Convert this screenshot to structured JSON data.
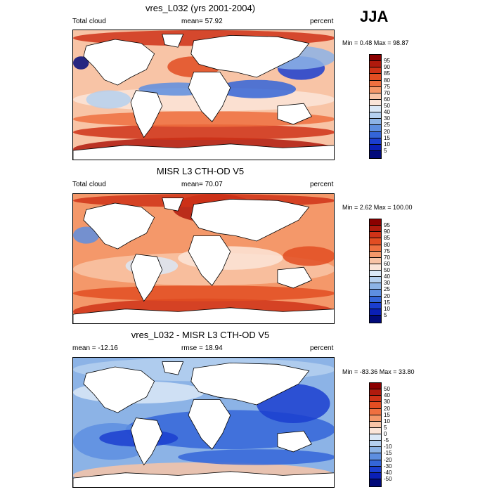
{
  "season_label": "JJA",
  "panels": [
    {
      "title": "vres_L032 (yrs 2001-2004)",
      "left_label": "Total cloud",
      "center_label": "mean=  57.92",
      "right_label": "percent",
      "minmax": "Min =   0.48 Max =  98.87",
      "colorbar_labels": [
        "95",
        "90",
        "85",
        "80",
        "75",
        "70",
        "60",
        "50",
        "40",
        "30",
        "25",
        "20",
        "15",
        "10",
        "5"
      ],
      "colorbar_colors": [
        "#8b0000",
        "#b01a0d",
        "#cf3217",
        "#e24d22",
        "#ef7040",
        "#f4986a",
        "#f8c4a6",
        "#fbe5d8",
        "#dbe8f6",
        "#b5d0ef",
        "#8cb3e6",
        "#5d8ee0",
        "#3465d8",
        "#1b3ecf",
        "#0a1fb6",
        "#010a7a"
      ]
    },
    {
      "title": "MISR L3 CTH-OD V5",
      "left_label": "Total cloud",
      "center_label": "mean=  70.07",
      "right_label": "percent",
      "minmax": "Min =   2.62 Max = 100.00",
      "colorbar_labels": [
        "95",
        "90",
        "85",
        "80",
        "75",
        "70",
        "60",
        "50",
        "40",
        "30",
        "25",
        "20",
        "15",
        "10",
        "5"
      ],
      "colorbar_colors": [
        "#8b0000",
        "#b01a0d",
        "#cf3217",
        "#e24d22",
        "#ef7040",
        "#f4986a",
        "#f8c4a6",
        "#fbe5d8",
        "#dbe8f6",
        "#b5d0ef",
        "#8cb3e6",
        "#5d8ee0",
        "#3465d8",
        "#1b3ecf",
        "#0a1fb6",
        "#010a7a"
      ]
    },
    {
      "title": "vres_L032 - MISR L3 CTH-OD V5",
      "left_label": "mean = -12.16",
      "center_label": "rmse =  18.94",
      "right_label": "percent",
      "minmax": "Min = -83.36 Max =  33.80",
      "colorbar_labels": [
        "50",
        "40",
        "30",
        "20",
        "15",
        "10",
        "5",
        "0",
        "-5",
        "-10",
        "-15",
        "-20",
        "-30",
        "-40",
        "-50"
      ],
      "colorbar_colors": [
        "#8b0000",
        "#b01a0d",
        "#cf3217",
        "#e24d22",
        "#ef7040",
        "#f4986a",
        "#f8c4a6",
        "#fbe5d8",
        "#dbe8f6",
        "#b5d0ef",
        "#8cb3e6",
        "#5d8ee0",
        "#3465d8",
        "#1b3ecf",
        "#0a1fb6",
        "#010a7a"
      ]
    }
  ],
  "map_fields": [
    {
      "base": "#f8c4a6",
      "features": [
        [
          "#b01a0d",
          0.0,
          0.82,
          1.0,
          1.0
        ],
        [
          "#cf3217",
          0.0,
          0.72,
          1.0,
          0.84
        ],
        [
          "#ef7040",
          0.0,
          0.62,
          1.0,
          0.74
        ],
        [
          "#fbe5d8",
          0.0,
          0.44,
          1.0,
          0.62
        ],
        [
          "#3465d8",
          0.55,
          0.38,
          0.85,
          0.52
        ],
        [
          "#5d8ee0",
          0.25,
          0.4,
          0.55,
          0.5
        ],
        [
          "#1b3ecf",
          0.78,
          0.2,
          0.96,
          0.38
        ],
        [
          "#8cb3e6",
          0.7,
          0.12,
          1.0,
          0.3
        ],
        [
          "#cf3217",
          0.0,
          0.0,
          1.0,
          0.12
        ],
        [
          "#010a7a",
          0.0,
          0.2,
          0.06,
          0.3
        ],
        [
          "#e24d22",
          0.36,
          0.2,
          0.56,
          0.36
        ],
        [
          "#b5d0ef",
          0.05,
          0.46,
          0.22,
          0.6
        ]
      ]
    },
    {
      "base": "#f4986a",
      "features": [
        [
          "#cf3217",
          0.0,
          0.8,
          1.0,
          1.0
        ],
        [
          "#e24d22",
          0.0,
          0.7,
          1.0,
          0.82
        ],
        [
          "#f8c4a6",
          0.0,
          0.45,
          1.0,
          0.7
        ],
        [
          "#fbe5d8",
          0.4,
          0.4,
          0.8,
          0.58
        ],
        [
          "#b01a0d",
          0.38,
          0.0,
          0.7,
          0.22
        ],
        [
          "#cf3217",
          0.0,
          0.0,
          1.0,
          0.1
        ],
        [
          "#5d8ee0",
          0.0,
          0.25,
          0.1,
          0.38
        ],
        [
          "#dbe8f6",
          0.2,
          0.48,
          0.4,
          0.62
        ],
        [
          "#e24d22",
          0.8,
          0.4,
          1.0,
          0.55
        ]
      ]
    },
    {
      "base": "#8cb3e6",
      "features": [
        [
          "#3465d8",
          0.2,
          0.4,
          1.0,
          0.7
        ],
        [
          "#1b3ecf",
          0.7,
          0.2,
          0.98,
          0.5
        ],
        [
          "#5d8ee0",
          0.0,
          0.5,
          0.3,
          0.78
        ],
        [
          "#f8c4a6",
          0.0,
          0.8,
          1.0,
          1.0
        ],
        [
          "#b5d0ef",
          0.0,
          0.0,
          1.0,
          0.18
        ],
        [
          "#dbe8f6",
          0.0,
          0.18,
          0.5,
          0.35
        ],
        [
          "#3465d8",
          0.4,
          0.7,
          1.0,
          0.82
        ],
        [
          "#1b3ecf",
          0.1,
          0.55,
          0.4,
          0.68
        ]
      ]
    }
  ]
}
